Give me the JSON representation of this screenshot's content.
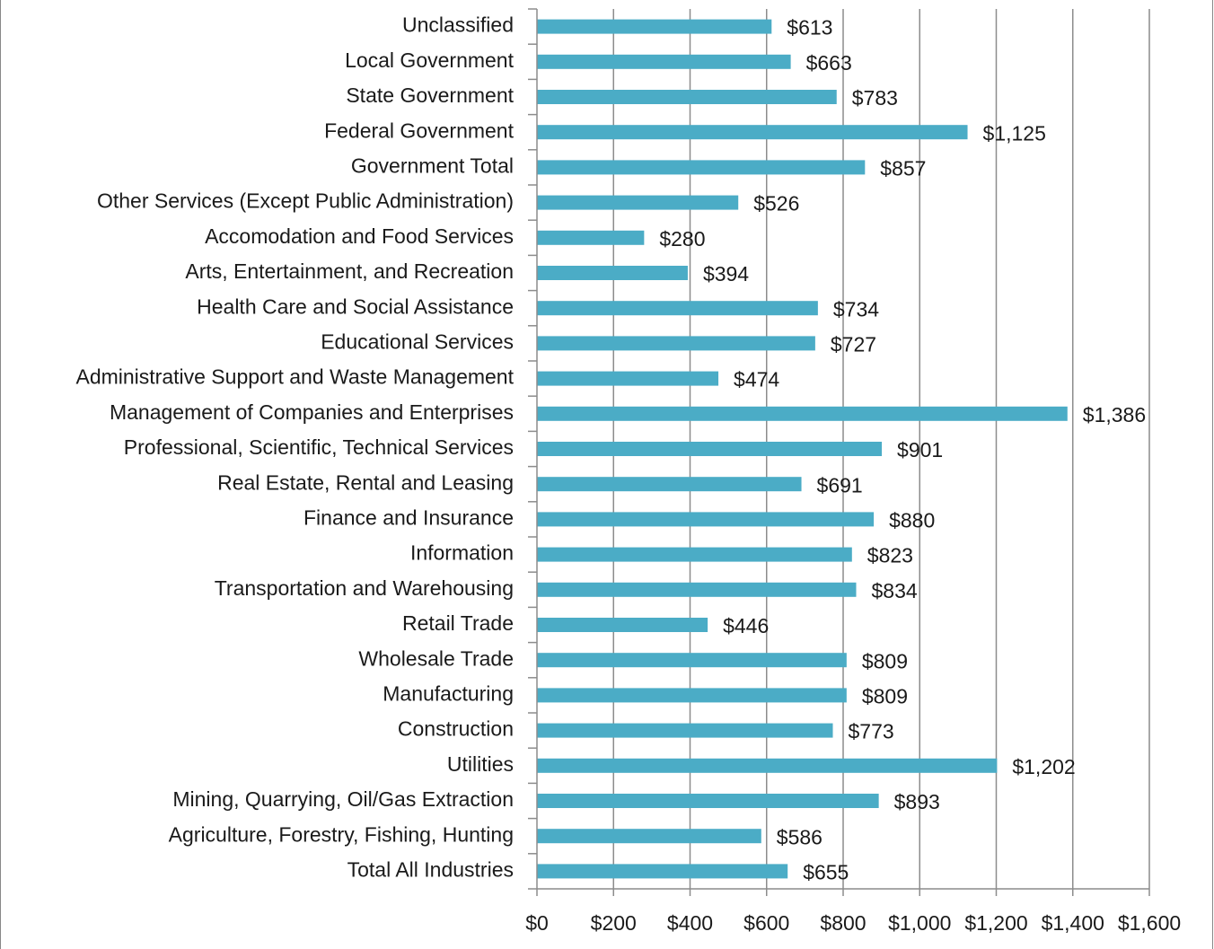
{
  "chart_data": {
    "type": "barh",
    "categories": [
      "Unclassified",
      "Local Government",
      "State Government",
      "Federal Government",
      "Government Total",
      "Other Services (Except Public Administration)",
      "Accomodation and Food Services",
      "Arts, Entertainment, and Recreation",
      "Health Care and Social Assistance",
      "Educational Services",
      "Administrative Support and Waste Management",
      "Management of Companies and Enterprises",
      "Professional, Scientific, Technical Services",
      "Real Estate, Rental and Leasing",
      "Finance and Insurance",
      "Information",
      "Transportation and Warehousing",
      "Retail Trade",
      "Wholesale Trade",
      "Manufacturing",
      "Construction",
      "Utilities",
      "Mining, Quarrying, Oil/Gas Extraction",
      "Agriculture, Forestry, Fishing, Hunting",
      "Total All Industries"
    ],
    "values": [
      613,
      663,
      783,
      1125,
      857,
      526,
      280,
      394,
      734,
      727,
      474,
      1386,
      901,
      691,
      880,
      823,
      834,
      446,
      809,
      809,
      773,
      1202,
      893,
      586,
      655
    ],
    "value_labels": [
      "$613",
      "$663",
      "$783",
      "$1,125",
      "$857",
      "$526",
      "$280",
      "$394",
      "$734",
      "$727",
      "$474",
      "$1,386",
      "$901",
      "$691",
      "$880",
      "$823",
      "$834",
      "$446",
      "$809",
      "$809",
      "$773",
      "$1,202",
      "$893",
      "$586",
      "$655"
    ],
    "color": "#4bacc6",
    "xlim": [
      0,
      1600
    ],
    "xticks": [
      {
        "value": 0,
        "label": "$0"
      },
      {
        "value": 200,
        "label": "$200"
      },
      {
        "value": 400,
        "label": "$400"
      },
      {
        "value": 600,
        "label": "$600"
      },
      {
        "value": 800,
        "label": "$800"
      },
      {
        "value": 1000,
        "label": "$1,000"
      },
      {
        "value": 1200,
        "label": "$1,200"
      },
      {
        "value": 1400,
        "label": "$1,400"
      },
      {
        "value": 1600,
        "label": "$1,600"
      }
    ],
    "grid": true
  }
}
